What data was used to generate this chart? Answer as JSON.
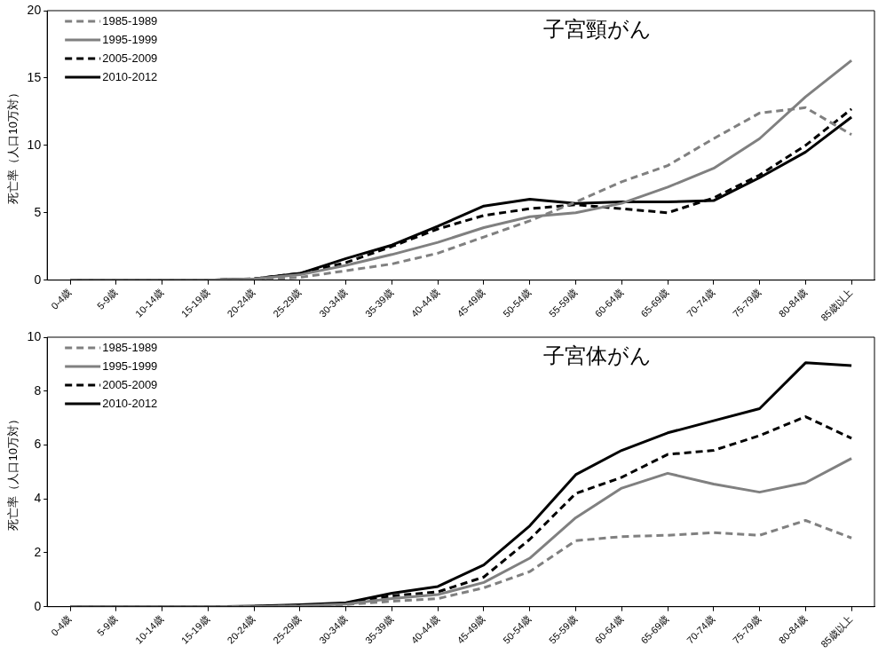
{
  "chart_data": [
    {
      "type": "line",
      "title": "子宮頸がん",
      "ylabel": "死亡率（人口10万対）",
      "categories": [
        "0-4歳",
        "5-9歳",
        "10-14歳",
        "15-19歳",
        "20-24歳",
        "25-29歳",
        "30-34歳",
        "35-39歳",
        "40-44歳",
        "45-49歳",
        "50-54歳",
        "55-59歳",
        "60-64歳",
        "65-69歳",
        "70-74歳",
        "75-79歳",
        "80-84歳",
        "85歳以上"
      ],
      "ylim": [
        0,
        20
      ],
      "yticks": [
        0,
        5,
        10,
        15,
        20
      ],
      "legend": "top left",
      "marker": "none",
      "series": [
        {
          "name": "1985-1989",
          "color": "#808080",
          "line_style": "dashed",
          "values": [
            0,
            0,
            0,
            0,
            0.05,
            0.2,
            0.7,
            1.2,
            2.0,
            3.2,
            4.4,
            5.8,
            7.3,
            8.5,
            10.5,
            12.4,
            12.8,
            10.8
          ]
        },
        {
          "name": "1995-1999",
          "color": "#808080",
          "line_style": "solid",
          "values": [
            0,
            0,
            0,
            0,
            0.1,
            0.4,
            1.1,
            1.9,
            2.8,
            3.9,
            4.7,
            5.0,
            5.7,
            6.9,
            8.3,
            10.5,
            13.6,
            16.3
          ]
        },
        {
          "name": "2005-2009",
          "color": "#000000",
          "line_style": "dashed",
          "values": [
            0,
            0,
            0,
            0,
            0.1,
            0.5,
            1.3,
            2.5,
            3.8,
            4.8,
            5.3,
            5.6,
            5.3,
            5.0,
            6.1,
            7.8,
            10.0,
            12.7
          ]
        },
        {
          "name": "2010-2012",
          "color": "#000000",
          "line_style": "solid",
          "values": [
            0,
            0,
            0,
            0,
            0.1,
            0.5,
            1.6,
            2.6,
            4.0,
            5.5,
            6.0,
            5.7,
            5.8,
            5.8,
            5.9,
            7.6,
            9.5,
            12.1
          ]
        }
      ]
    },
    {
      "type": "line",
      "title": "子宮体がん",
      "ylabel": "死亡率（人口10万対）",
      "categories": [
        "0-4歳",
        "5-9歳",
        "10-14歳",
        "15-19歳",
        "20-24歳",
        "25-29歳",
        "30-34歳",
        "35-39歳",
        "40-44歳",
        "45-49歳",
        "50-54歳",
        "55-59歳",
        "60-64歳",
        "65-69歳",
        "70-74歳",
        "75-79歳",
        "80-84歳",
        "85歳以上"
      ],
      "ylim": [
        0,
        10
      ],
      "yticks": [
        0,
        2,
        4,
        6,
        8,
        10
      ],
      "legend": "top left",
      "marker": "none",
      "series": [
        {
          "name": "1985-1989",
          "color": "#808080",
          "line_style": "dashed",
          "values": [
            0,
            0,
            0,
            0,
            0,
            0.02,
            0.08,
            0.2,
            0.3,
            0.7,
            1.3,
            2.45,
            2.6,
            2.65,
            2.75,
            2.65,
            3.2,
            2.55
          ]
        },
        {
          "name": "1995-1999",
          "color": "#808080",
          "line_style": "solid",
          "values": [
            0,
            0,
            0,
            0,
            0,
            0.03,
            0.1,
            0.3,
            0.45,
            0.9,
            1.8,
            3.3,
            4.4,
            4.95,
            4.55,
            4.25,
            4.6,
            5.5
          ]
        },
        {
          "name": "2005-2009",
          "color": "#000000",
          "line_style": "dashed",
          "values": [
            0,
            0,
            0,
            0,
            0.01,
            0.05,
            0.12,
            0.4,
            0.55,
            1.1,
            2.5,
            4.2,
            4.8,
            5.65,
            5.8,
            6.35,
            7.05,
            6.25
          ]
        },
        {
          "name": "2010-2012",
          "color": "#000000",
          "line_style": "solid",
          "values": [
            0,
            0,
            0,
            0,
            0.02,
            0.07,
            0.15,
            0.5,
            0.75,
            1.55,
            3.0,
            4.9,
            5.8,
            6.45,
            6.9,
            7.35,
            9.05,
            8.95
          ]
        }
      ]
    }
  ]
}
